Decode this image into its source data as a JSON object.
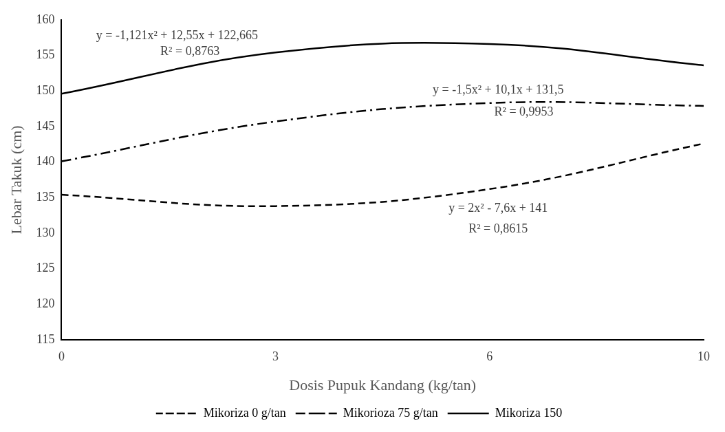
{
  "chart_data": {
    "type": "line",
    "xlabel": "Dosis Pupuk Kandang (kg/tan)",
    "ylabel": "Lebar Takuk (cm)",
    "categories": [
      "0",
      "3",
      "6",
      "10"
    ],
    "series": [
      {
        "name": "Mikoriza 0 g/tan",
        "color": "#000000",
        "line_style": "dashed",
        "values": [
          135.4,
          133.8,
          136.2,
          142.6
        ]
      },
      {
        "name": "Mikorioza 75 g/tan",
        "color": "#000000",
        "line_style": "dashdot",
        "values": [
          140.1,
          145.7,
          148.3,
          147.9
        ]
      },
      {
        "name": "Mikoriza 150",
        "color": "#000000",
        "line_style": "solid",
        "values": [
          149.6,
          155.4,
          156.6,
          153.6
        ]
      }
    ],
    "ylim": [
      115,
      160
    ],
    "yticks": [
      115,
      120,
      125,
      130,
      135,
      140,
      145,
      150,
      155,
      160
    ],
    "grid": false,
    "legend": "bottom",
    "marker": "none",
    "annotations": [
      "y = -1,121x² + 12,55x + 122,665",
      "R² = 0,8763",
      "y = -1,5x² + 10,1x + 131,5",
      "R² = 0,9953",
      "y = 2x² - 7,6x + 141",
      "R² = 0,8615"
    ]
  }
}
